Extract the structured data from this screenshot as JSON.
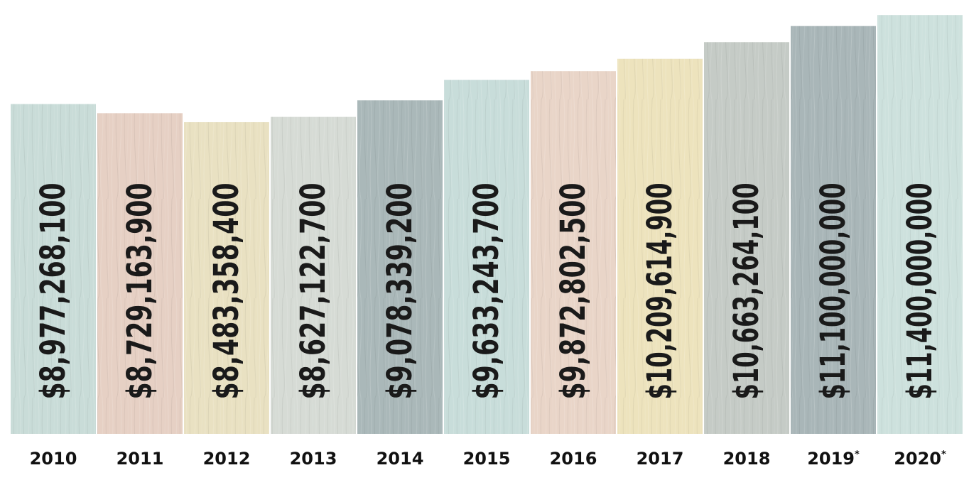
{
  "chart_data": {
    "type": "bar",
    "categories": [
      "2010",
      "2011",
      "2012",
      "2013",
      "2014",
      "2015",
      "2016",
      "2017",
      "2018",
      "2019",
      "2020"
    ],
    "category_markers": [
      "",
      "",
      "",
      "",
      "",
      "",
      "",
      "",
      "",
      "*",
      "*"
    ],
    "values": [
      8977268100,
      8729163900,
      8483358400,
      8627122700,
      9078339200,
      9633243700,
      9872802500,
      10209614900,
      10663264100,
      11100000000,
      11400000000
    ],
    "value_labels": [
      "$8,977,268,100",
      "$8,729,163,900",
      "$8,483,358,400",
      "$8,627,122,700",
      "$9,078,339,200",
      "$9,633,243,700",
      "$9,872,802,500",
      "$10,209,614,900",
      "$10,663,264,100",
      "$11,100,000,000",
      "$11,400,000,000"
    ],
    "bar_colors": [
      "#c9dcd8",
      "#e6d0c4",
      "#e9e1c2",
      "#d6dbd5",
      "#aab8b9",
      "#c8ddda",
      "#e9d5c8",
      "#ede3bd",
      "#c5cbc6",
      "#a9b6b8",
      "#cde1dd"
    ],
    "ylim": [
      0,
      11500000000
    ],
    "grid": false,
    "legend": "none",
    "title": "",
    "xlabel": "",
    "ylabel": ""
  }
}
